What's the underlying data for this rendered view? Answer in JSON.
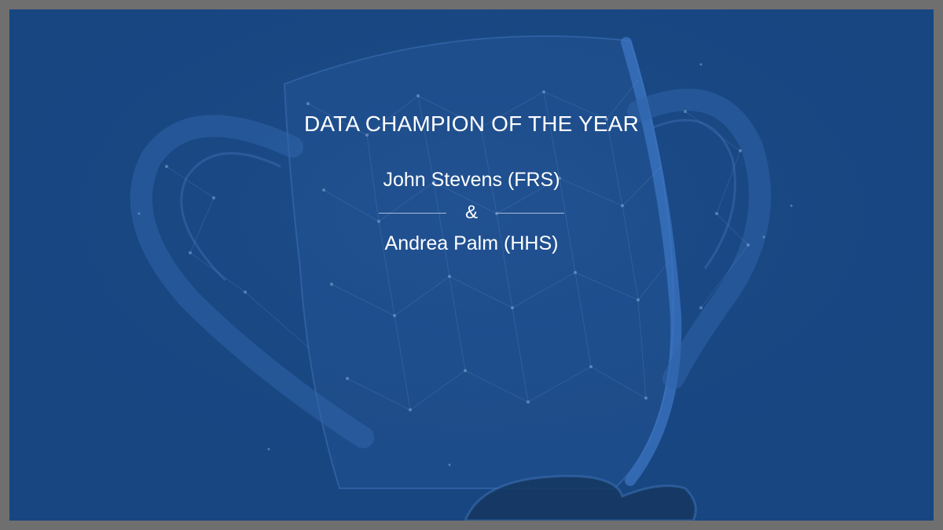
{
  "slide": {
    "title": "DATA CHAMPION OF THE YEAR",
    "winner_1": "John Stevens (FRS)",
    "separator": "&",
    "winner_2": "Andrea Palm (HHS)"
  },
  "background": {
    "image": "trophy-constellation",
    "color": "#184681",
    "frame_color": "#6f6f6f"
  }
}
